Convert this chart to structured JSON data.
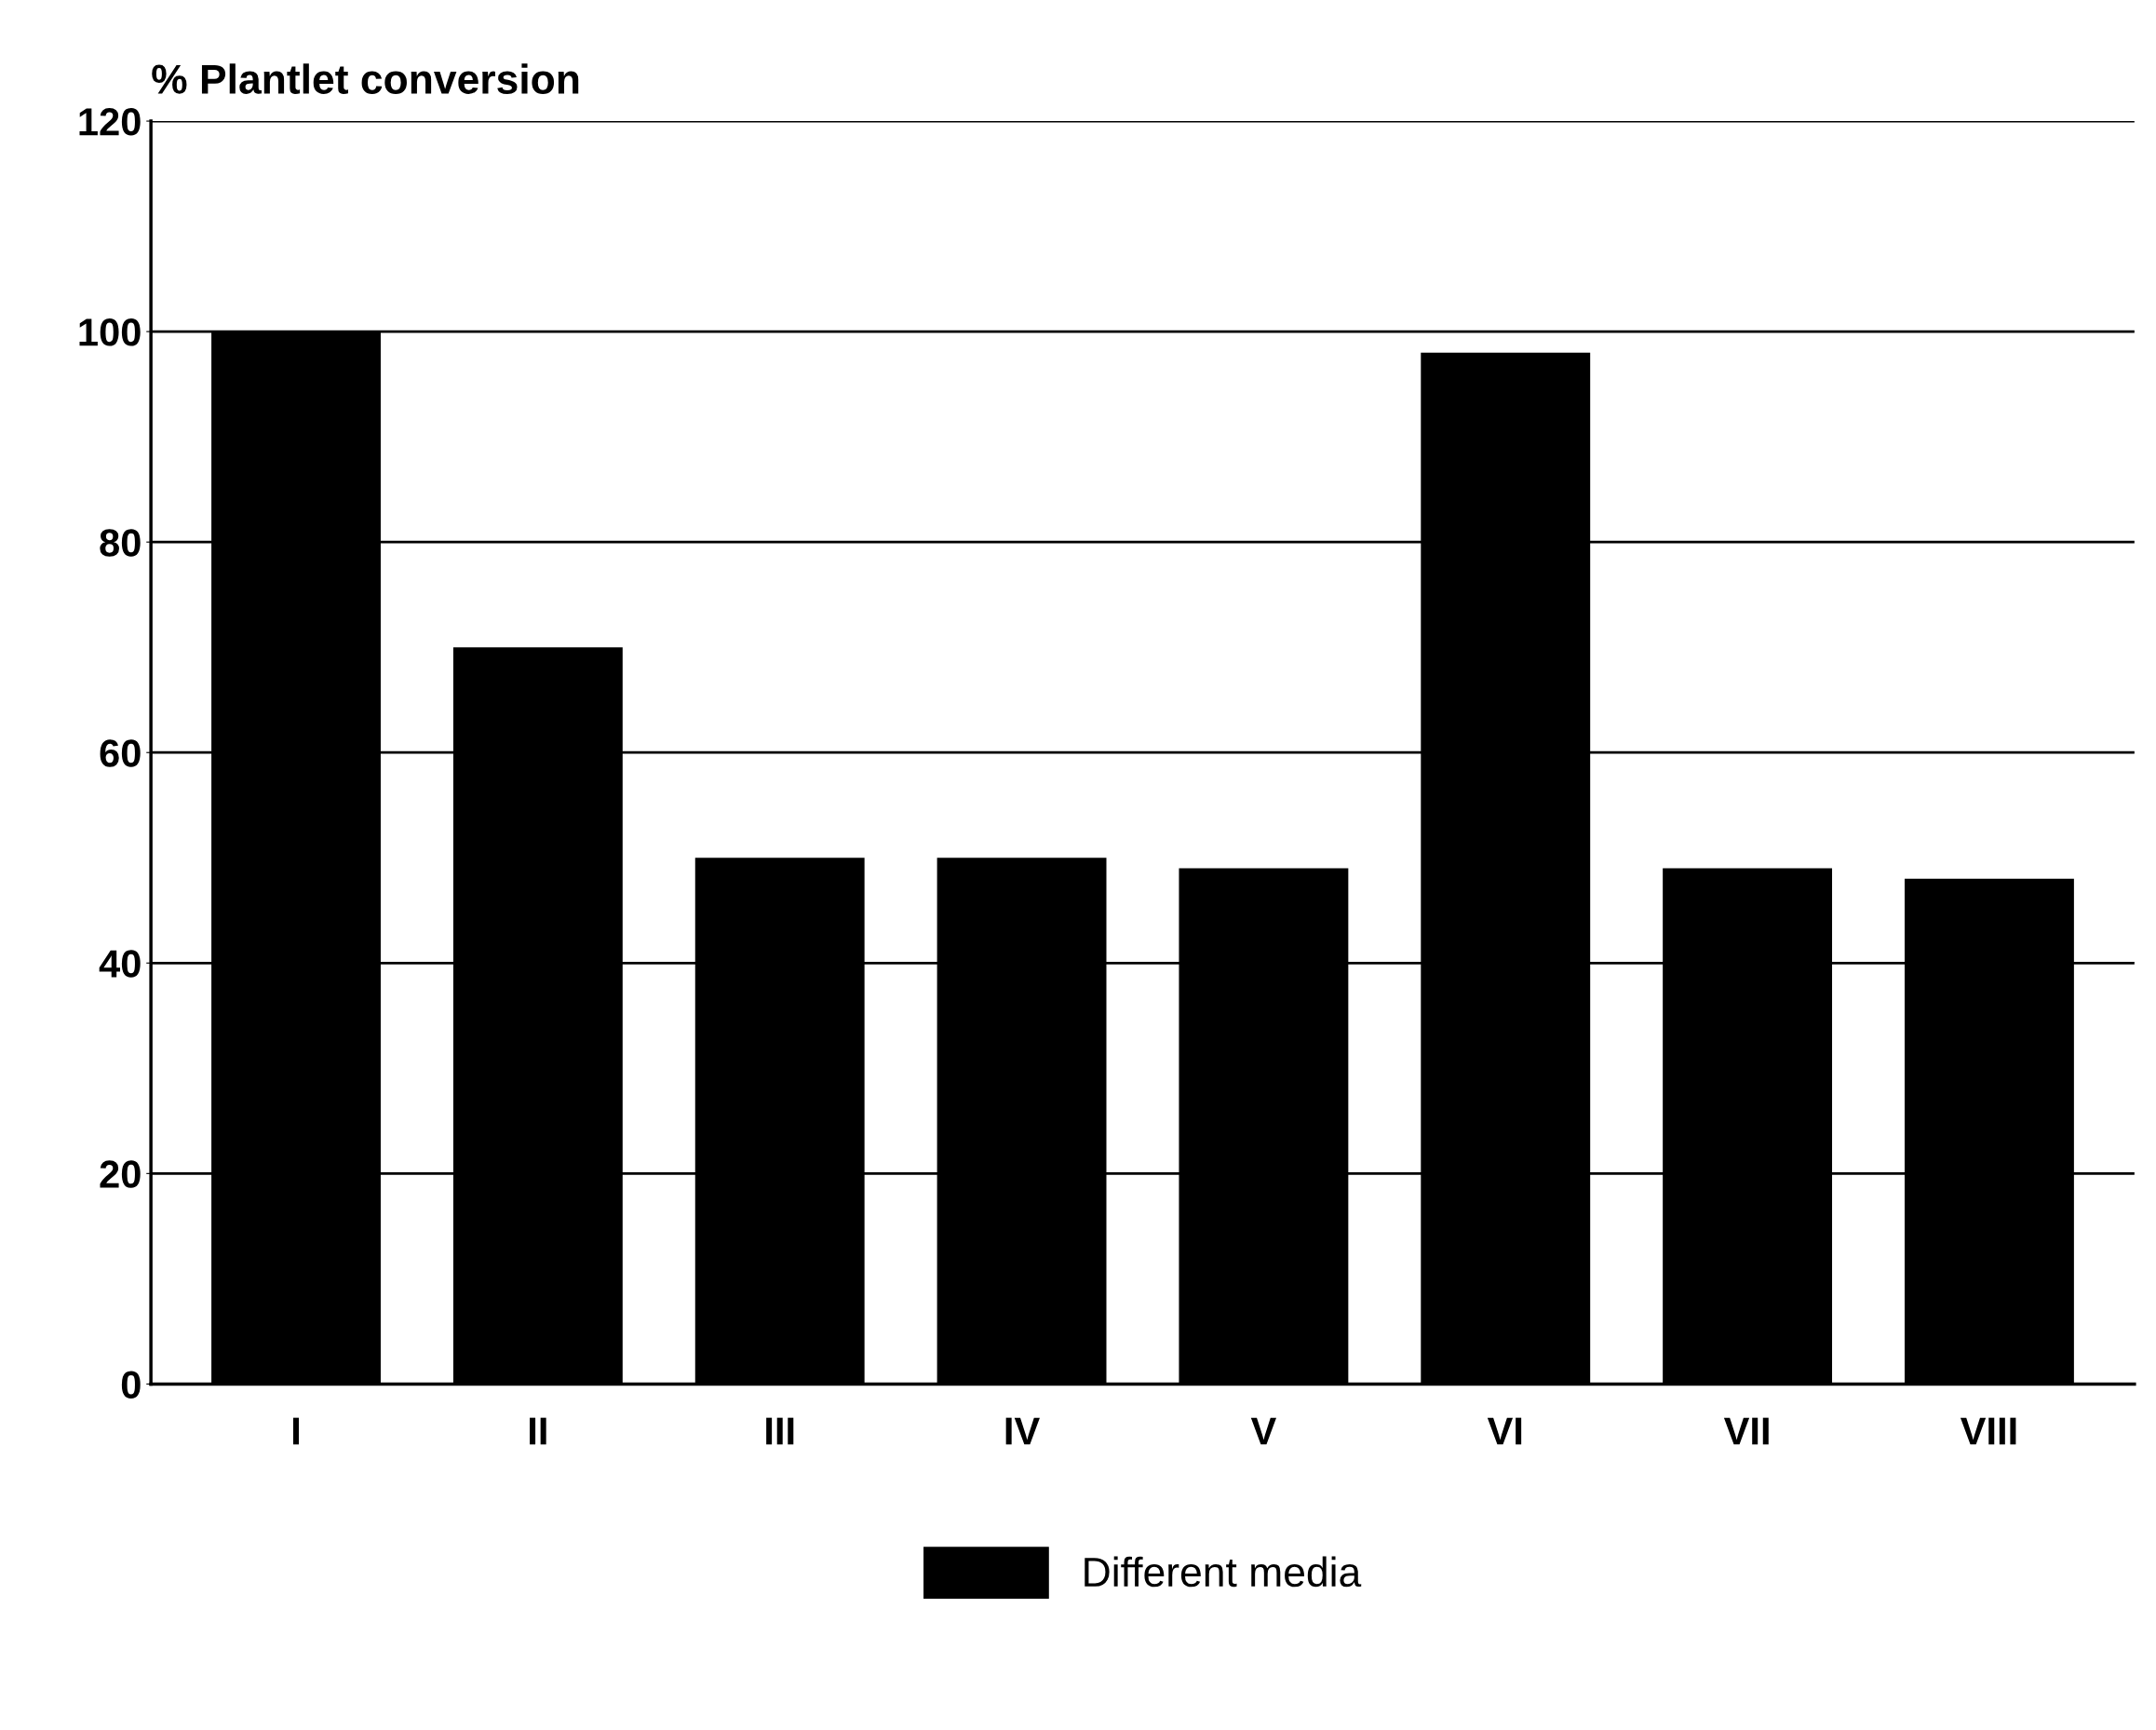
{
  "chart_data": {
    "type": "bar",
    "ylabel": "% Plantlet conversion",
    "categories": [
      "I",
      "II",
      "III",
      "IV",
      "V",
      "VI",
      "VII",
      "VIII"
    ],
    "series": [
      {
        "name": "Different media",
        "color": "#000000",
        "values": [
          100,
          70,
          50,
          50,
          49,
          98,
          49,
          48
        ]
      }
    ],
    "ylim": [
      0,
      120
    ],
    "yticks": [
      0,
      20,
      40,
      60,
      80,
      100,
      120
    ],
    "grid": "y",
    "legend": "bottom"
  }
}
